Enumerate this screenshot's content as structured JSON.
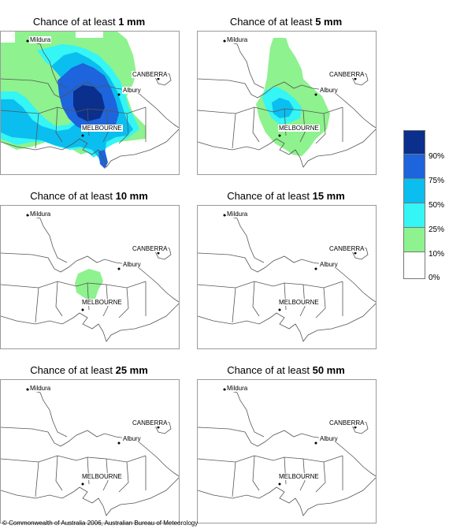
{
  "legend": {
    "items": [
      {
        "label": "90%",
        "color": "#0a2f8c"
      },
      {
        "label": "75%",
        "color": "#1e64dc"
      },
      {
        "label": "50%",
        "color": "#0abef0"
      },
      {
        "label": "25%",
        "color": "#35f5f5"
      },
      {
        "label": "10%",
        "color": "#8ef28e"
      },
      {
        "label": "0%",
        "color": "#ffffff"
      }
    ]
  },
  "places": {
    "mildura": "Mildura",
    "canberra": "CANBERRA",
    "albury": "Albury",
    "melbourne": "MELBOURNE"
  },
  "panels": [
    {
      "prefix": "Chance of at least ",
      "amount": "1 mm"
    },
    {
      "prefix": "Chance of at least ",
      "amount": "5 mm"
    },
    {
      "prefix": "Chance of at least ",
      "amount": "10 mm"
    },
    {
      "prefix": "Chance of at least ",
      "amount": "15 mm"
    },
    {
      "prefix": "Chance of at least ",
      "amount": "25 mm"
    },
    {
      "prefix": "Chance of at least ",
      "amount": "50 mm"
    }
  ],
  "copyright": "© Commonwealth of Australia 2006, Australian Bureau of Meteorology"
}
